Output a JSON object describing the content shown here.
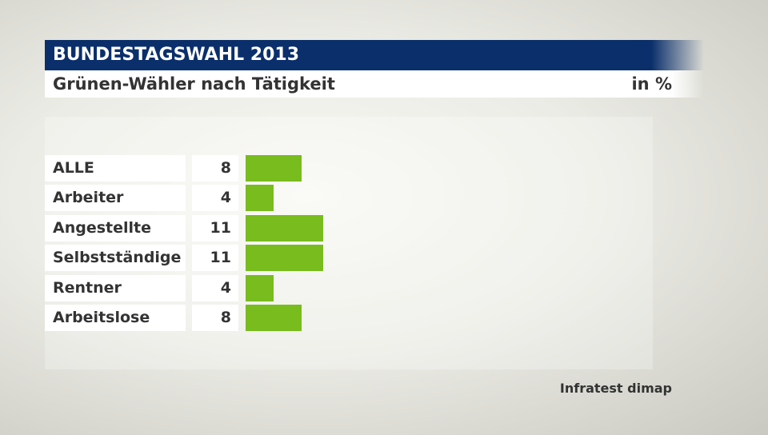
{
  "header": {
    "title": "BUNDESTAGSWAHL 2013",
    "subtitle": "Grünen-Wähler nach Tätigkeit",
    "unit": "in %"
  },
  "source": "Infratest dimap",
  "chart_data": {
    "type": "bar",
    "orientation": "horizontal",
    "title": "Grünen-Wähler nach Tätigkeit",
    "unit": "in %",
    "categories": [
      "ALLE",
      "Arbeiter",
      "Angestellte",
      "Selbstständige",
      "Rentner",
      "Arbeitslose"
    ],
    "values": [
      8,
      4,
      11,
      11,
      4,
      8
    ],
    "bar_color": "#78bc1e",
    "header_color": "#0a2f6b"
  }
}
